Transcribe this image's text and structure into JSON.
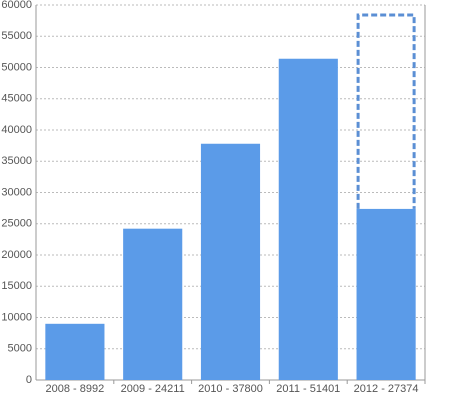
{
  "chart_data": {
    "type": "bar",
    "categories": [
      "2008 - 8992",
      "2009 - 24211",
      "2010 - 37800",
      "2011 - 51401",
      "2012 - 27374"
    ],
    "values": [
      8992,
      24211,
      37800,
      51401,
      27374
    ],
    "outline_values": [
      null,
      null,
      null,
      null,
      58400
    ],
    "color": "#5b9be8",
    "outline_color": "#5b8fd4",
    "ylim": [
      0,
      60000
    ],
    "yticks": [
      0,
      5000,
      10000,
      15000,
      20000,
      25000,
      30000,
      35000,
      40000,
      45000,
      50000,
      55000,
      60000
    ],
    "grid": true
  }
}
